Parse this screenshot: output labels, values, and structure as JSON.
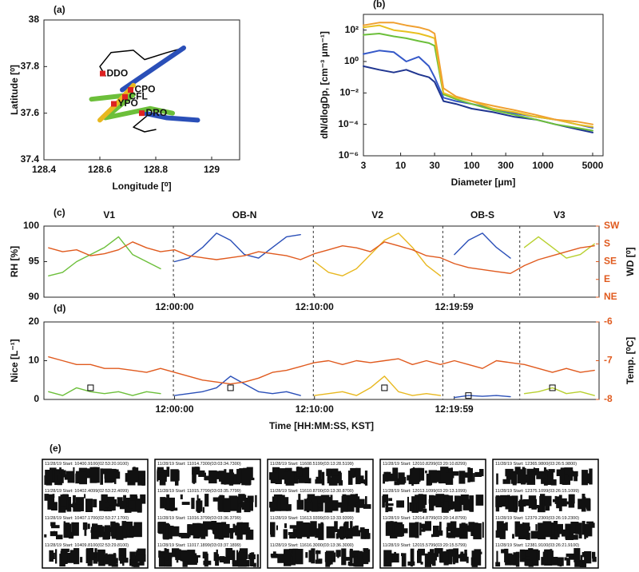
{
  "chart_data": [
    {
      "type": "line",
      "label": "(a)",
      "xlabel": "Longitude [⁰]",
      "ylabel": "Latitude [⁰]",
      "xlim": [
        128.4,
        129.1
      ],
      "xticks": [
        128.4,
        128.6,
        128.8,
        129
      ],
      "ylim": [
        37.4,
        38
      ],
      "yticks": [
        37.4,
        37.6,
        37.8,
        38
      ],
      "series": [
        {
          "color": "#000000",
          "x": [
            128.62,
            128.6,
            128.64,
            128.72,
            128.76,
            128.84,
            128.9
          ],
          "values": [
            37.76,
            37.8,
            37.86,
            37.87,
            37.83,
            37.86,
            37.88
          ]
        },
        {
          "color": "#000000",
          "x": [
            128.78,
            128.72,
            128.76,
            128.8
          ],
          "values": [
            37.6,
            37.54,
            37.52,
            37.53
          ]
        },
        {
          "color": "#2a4fb8",
          "x": [
            128.68,
            128.9
          ],
          "values": [
            37.7,
            37.88
          ]
        },
        {
          "color": "#2a4fb8",
          "x": [
            128.76,
            128.84,
            128.95
          ],
          "values": [
            37.6,
            37.58,
            37.57
          ]
        },
        {
          "color": "#6cbf3a",
          "x": [
            128.57,
            128.72,
            128.62,
            128.78,
            128.86
          ],
          "values": [
            37.66,
            37.68,
            37.58,
            37.62,
            37.6
          ]
        },
        {
          "color": "#e8b820",
          "x": [
            128.6,
            128.66,
            128.72
          ],
          "values": [
            37.57,
            37.64,
            37.72
          ]
        }
      ],
      "sites": [
        {
          "label": "DDO",
          "x": 128.61,
          "y": 37.77
        },
        {
          "label": "CPO",
          "x": 128.71,
          "y": 37.7
        },
        {
          "label": "CFL",
          "x": 128.69,
          "y": 37.67
        },
        {
          "label": "YPO",
          "x": 128.65,
          "y": 37.64
        },
        {
          "label": "DRO",
          "x": 128.75,
          "y": 37.6
        }
      ]
    },
    {
      "type": "line",
      "label": "(b)",
      "xlabel": "Diameter [μm]",
      "ylabel": "dN/dlogDp, [cm⁻³ μm⁻¹]",
      "xlog": true,
      "ylog": true,
      "xlim": [
        3,
        7000
      ],
      "xticks": [
        3,
        10,
        30,
        100,
        300,
        1000,
        5000
      ],
      "ylim": [
        1e-06,
        1000
      ],
      "yticks": [
        {
          "value": 1e-06,
          "label": "10⁻⁶"
        },
        {
          "value": 0.0001,
          "label": "10⁻⁴"
        },
        {
          "value": 0.01,
          "label": "10⁻²"
        },
        {
          "value": 1,
          "label": "10⁰"
        },
        {
          "value": 100,
          "label": "10²"
        }
      ],
      "series": [
        {
          "color": "#1f3590",
          "x": [
            3,
            5,
            8,
            12,
            18,
            25,
            30,
            40,
            60,
            100,
            200,
            400,
            800,
            1500,
            3000,
            5000
          ],
          "values": [
            0.5,
            0.3,
            0.2,
            0.3,
            0.15,
            0.1,
            0.05,
            0.003,
            0.002,
            0.001,
            0.0006,
            0.0003,
            0.0002,
            0.0001,
            5e-05,
            3e-05
          ]
        },
        {
          "color": "#3458c8",
          "x": [
            3,
            5,
            8,
            12,
            18,
            25,
            30,
            40,
            60,
            100,
            200,
            400,
            800,
            1500,
            3000,
            5000
          ],
          "values": [
            3,
            5,
            4,
            1,
            2,
            0.5,
            0.1,
            0.005,
            0.003,
            0.002,
            0.001,
            0.0005,
            0.0003,
            0.0002,
            0.0001,
            6e-05
          ]
        },
        {
          "color": "#6cbf3a",
          "x": [
            3,
            5,
            8,
            12,
            18,
            25,
            30,
            40,
            60,
            100,
            200,
            400,
            800,
            1500,
            3000,
            5000
          ],
          "values": [
            50,
            60,
            40,
            30,
            20,
            15,
            10,
            0.008,
            0.004,
            0.002,
            0.0008,
            0.0004,
            0.0002,
            0.0001,
            6e-05,
            4e-05
          ]
        },
        {
          "color": "#e8c020",
          "x": [
            3,
            5,
            8,
            12,
            18,
            25,
            30,
            40,
            60,
            100,
            200,
            400,
            800,
            1500,
            3000,
            5000
          ],
          "values": [
            150,
            200,
            100,
            80,
            60,
            40,
            30,
            0.01,
            0.005,
            0.003,
            0.001,
            0.0006,
            0.0003,
            0.0002,
            0.0001,
            7e-05
          ]
        },
        {
          "color": "#f0a030",
          "x": [
            3,
            5,
            8,
            12,
            18,
            25,
            30,
            40,
            60,
            100,
            200,
            400,
            800,
            1500,
            3000,
            5000
          ],
          "values": [
            200,
            300,
            300,
            200,
            150,
            100,
            60,
            0.02,
            0.006,
            0.003,
            0.0015,
            0.0008,
            0.0004,
            0.0002,
            0.00015,
            0.0001
          ]
        }
      ]
    },
    {
      "type": "line",
      "label": "(c)",
      "ylabel": "RH [%]",
      "y2label": "WD [⁰]",
      "y2color": "#e05a1e",
      "xlim": [
        "11:50:40",
        "12:30:20"
      ],
      "xticks": [
        "12:00:00",
        "12:10:00",
        "12:19:59"
      ],
      "ylim": [
        90,
        100
      ],
      "yticks": [
        90,
        95,
        100
      ],
      "y2lim": [
        45,
        225
      ],
      "y2ticks": [
        {
          "value": 45,
          "label": "NE"
        },
        {
          "value": 90,
          "label": "E"
        },
        {
          "value": 135,
          "label": "SE"
        },
        {
          "value": 180,
          "label": "S"
        },
        {
          "value": 225,
          "label": "SW"
        }
      ],
      "vlines": [
        "11:59:55",
        "12:09:55",
        "12:19:10",
        "12:24:40"
      ],
      "annotations": [
        {
          "text": "V1",
          "x": "11:55:20"
        },
        {
          "text": "OB-N",
          "x": "12:05:00"
        },
        {
          "text": "V2",
          "x": "12:14:30"
        },
        {
          "text": "OB-S",
          "x": "12:22:00"
        },
        {
          "text": "V3",
          "x": "12:27:30"
        }
      ],
      "series": [
        {
          "color": "#6cbf3a",
          "x": [
            "11:51:00",
            "11:52:00",
            "11:53:00",
            "11:54:00",
            "11:55:00",
            "11:56:00",
            "11:57:00",
            "11:58:00",
            "11:59:00"
          ],
          "values": [
            93,
            93.5,
            95,
            96,
            97,
            98.5,
            96,
            95,
            94
          ]
        },
        {
          "color": "#2a4fb8",
          "x": [
            "12:00:00",
            "12:01:00",
            "12:02:00",
            "12:03:00",
            "12:04:00",
            "12:05:00",
            "12:06:00",
            "12:07:00",
            "12:08:00",
            "12:09:00"
          ],
          "values": [
            95,
            95.5,
            97,
            99,
            98,
            96,
            95.5,
            97,
            98.5,
            98.8
          ]
        },
        {
          "color": "#e8b820",
          "x": [
            "12:10:00",
            "12:11:00",
            "12:12:00",
            "12:13:00",
            "12:14:00",
            "12:15:00",
            "12:16:00",
            "12:17:00",
            "12:18:00",
            "12:19:00"
          ],
          "values": [
            95,
            93.5,
            93,
            94,
            96,
            98,
            99,
            97,
            94.5,
            93
          ]
        },
        {
          "color": "#2a4fb8",
          "x": [
            "12:20:00",
            "12:21:00",
            "12:22:00",
            "12:23:00",
            "12:24:00"
          ],
          "values": [
            96,
            98,
            99,
            97,
            95.5
          ]
        },
        {
          "color": "#b8d030",
          "x": [
            "12:25:00",
            "12:26:00",
            "12:27:00",
            "12:28:00",
            "12:29:00",
            "12:30:00"
          ],
          "values": [
            97,
            98.5,
            97,
            95.5,
            96,
            97.5
          ]
        },
        {
          "color": "#e05a1e",
          "axis": "y2",
          "x": [
            "11:51:00",
            "11:52:00",
            "11:53:00",
            "11:54:00",
            "11:55:00",
            "11:56:00",
            "11:57:00",
            "11:58:00",
            "11:59:00",
            "12:00:00",
            "12:01:00",
            "12:02:00",
            "12:03:00",
            "12:04:00",
            "12:05:00",
            "12:06:00",
            "12:07:00",
            "12:08:00",
            "12:09:00",
            "12:10:00",
            "12:11:00",
            "12:12:00",
            "12:13:00",
            "12:14:00",
            "12:15:00",
            "12:16:00",
            "12:17:00",
            "12:18:00",
            "12:19:00",
            "12:20:00",
            "12:21:00",
            "12:22:00",
            "12:23:00",
            "12:24:00",
            "12:25:00",
            "12:26:00",
            "12:27:00",
            "12:28:00",
            "12:29:00",
            "12:30:00"
          ],
          "values": [
            170,
            160,
            165,
            150,
            155,
            165,
            185,
            170,
            160,
            165,
            150,
            145,
            140,
            145,
            150,
            160,
            155,
            150,
            140,
            155,
            165,
            175,
            170,
            160,
            185,
            175,
            165,
            150,
            145,
            130,
            120,
            115,
            110,
            105,
            125,
            140,
            150,
            160,
            170,
            175
          ]
        }
      ]
    },
    {
      "type": "line",
      "label": "(d)",
      "ylabel": "Nice [L⁻¹]",
      "y2label": "Temp. [⁰C]",
      "y2color": "#e05a1e",
      "xlabel": "Time [HH:MM:SS, KST]",
      "xlim": [
        "11:50:40",
        "12:30:20"
      ],
      "xticks": [
        "12:00:00",
        "12:10:00",
        "12:19:59"
      ],
      "ylim": [
        0,
        20
      ],
      "yticks": [
        0,
        10,
        20
      ],
      "y2lim": [
        -8,
        -6
      ],
      "y2ticks": [
        -8,
        -7,
        -6
      ],
      "vlines": [
        "11:59:55",
        "12:09:55",
        "12:19:10",
        "12:24:40"
      ],
      "series": [
        {
          "color": "#6cbf3a",
          "x": [
            "11:51:00",
            "11:52:00",
            "11:53:00",
            "11:54:00",
            "11:55:00",
            "11:56:00",
            "11:57:00",
            "11:58:00",
            "11:59:00"
          ],
          "values": [
            2,
            1,
            3,
            2,
            1.5,
            2,
            1,
            2,
            1.5
          ]
        },
        {
          "color": "#2a4fb8",
          "x": [
            "12:00:00",
            "12:01:00",
            "12:02:00",
            "12:03:00",
            "12:04:00",
            "12:05:00",
            "12:06:00",
            "12:07:00",
            "12:08:00",
            "12:09:00"
          ],
          "values": [
            1,
            1.5,
            2,
            3,
            6,
            4,
            2,
            1.5,
            2,
            1
          ]
        },
        {
          "color": "#e8b820",
          "x": [
            "12:10:00",
            "12:11:00",
            "12:12:00",
            "12:13:00",
            "12:14:00",
            "12:15:00",
            "12:16:00",
            "12:17:00",
            "12:18:00",
            "12:19:00"
          ],
          "values": [
            1,
            1.5,
            2,
            1,
            3,
            6,
            2,
            1,
            1.5,
            1
          ]
        },
        {
          "color": "#2a4fb8",
          "x": [
            "12:20:00",
            "12:21:00",
            "12:22:00",
            "12:23:00",
            "12:24:00"
          ],
          "values": [
            0.5,
            1,
            0.8,
            1,
            0.7
          ]
        },
        {
          "color": "#b8d030",
          "x": [
            "12:25:00",
            "12:26:00",
            "12:27:00",
            "12:28:00",
            "12:29:00",
            "12:30:00"
          ],
          "values": [
            1.5,
            2,
            3,
            1.5,
            2,
            1
          ]
        },
        {
          "color": "#e05a1e",
          "axis": "y2",
          "x": [
            "11:51:00",
            "11:52:00",
            "11:53:00",
            "11:54:00",
            "11:55:00",
            "11:56:00",
            "11:57:00",
            "11:58:00",
            "11:59:00",
            "12:00:00",
            "12:01:00",
            "12:02:00",
            "12:03:00",
            "12:04:00",
            "12:05:00",
            "12:06:00",
            "12:07:00",
            "12:08:00",
            "12:09:00",
            "12:10:00",
            "12:11:00",
            "12:12:00",
            "12:13:00",
            "12:14:00",
            "12:15:00",
            "12:16:00",
            "12:17:00",
            "12:18:00",
            "12:19:00",
            "12:20:00",
            "12:21:00",
            "12:22:00",
            "12:23:00",
            "12:24:00",
            "12:25:00",
            "12:26:00",
            "12:27:00",
            "12:28:00",
            "12:29:00",
            "12:30:00"
          ],
          "values": [
            -6.9,
            -7.0,
            -7.1,
            -7.1,
            -7.2,
            -7.2,
            -7.25,
            -7.3,
            -7.2,
            -7.3,
            -7.4,
            -7.5,
            -7.55,
            -7.6,
            -7.55,
            -7.45,
            -7.3,
            -7.25,
            -7.15,
            -7.05,
            -7.0,
            -7.1,
            -7.0,
            -7.05,
            -7.0,
            -6.95,
            -7.1,
            -7.0,
            -7.1,
            -7.0,
            -7.1,
            -7.2,
            -7.0,
            -7.05,
            -7.1,
            -7.2,
            -7.3,
            -7.2,
            -7.3,
            -7.25
          ]
        },
        {
          "color": "#000000",
          "marker": "square",
          "x": [
            "11:54:00",
            "12:04:00",
            "12:15:00",
            "12:21:00",
            "12:27:00"
          ],
          "values": [
            3,
            3,
            3,
            1,
            3
          ]
        }
      ]
    }
  ],
  "images": {
    "label": "(e)",
    "panels": [
      [
        "11/28/19 Start: 10400.9100(02:53:20.9100)",
        "11/28/19 Start: 10402.4099(02:53:22.4099)",
        "11/28/19 Start: 10407.1700(02:53:27.1700)",
        "11/28/19 Start: 10409.8100(02:53:29.8100)"
      ],
      [
        "11/28/19 Start: 11014.7300(03:03:34.7300)",
        "11/28/19 Start: 11015.7799(03:03:35.7799)",
        "11/28/19 Start: 11016.3799(03:03:36.3799)",
        "11/28/19 Start: 11017.1899(03:03:37.1899)"
      ],
      [
        "11/28/19 Start: 11608.5199(03:13:28.5199)",
        "11/28/19 Start: 11610.8700(03:13:30.8700)",
        "11/28/19 Start: 11613.9399(03:13:33.9399)",
        "11/28/19 Start: 11616.3000(03:13:36.3000)"
      ],
      [
        "11/28/19 Start: 12010.8299(03:20:10.8299)",
        "11/28/19 Start: 12013.1099(03:20:13.1099)",
        "11/28/19 Start: 12014.8799(03:20:14.8799)",
        "11/28/19 Start: 12015.5799(03:20:15.5799)"
      ],
      [
        "11/28/19 Start: 12365.9800(03:26:5.9800)",
        "11/28/19 Start: 12375.1099(03:26:15.1099)",
        "11/28/19 Start: 12379.2300(03:26:19.2300)",
        "11/28/19 Start: 12381.9100(03:26:21.9100)"
      ]
    ]
  }
}
